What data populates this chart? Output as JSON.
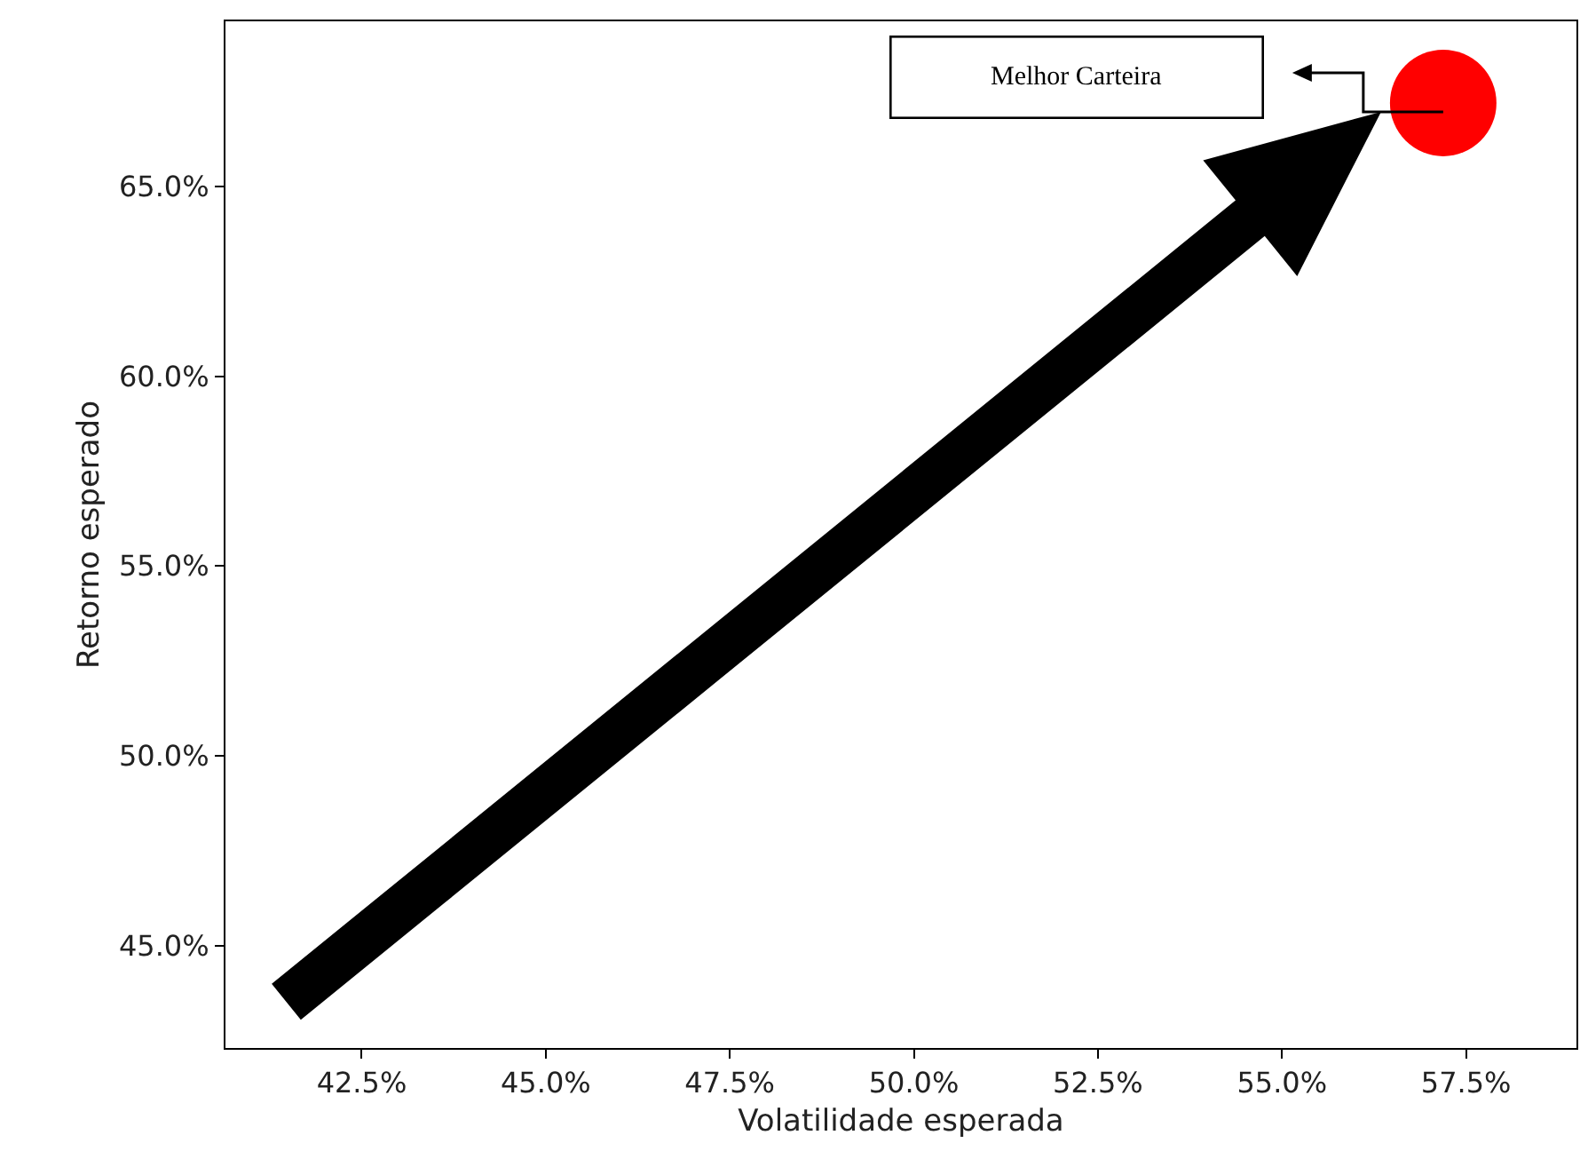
{
  "chart_data": {
    "type": "scatter",
    "xlabel": "Volatilidade esperada",
    "ylabel": "Retorno esperado",
    "x": [
      57.19
    ],
    "series": [
      {
        "color": "#ff0000",
        "values": [
          67.2
        ]
      }
    ],
    "marker": "circle",
    "grid": false,
    "xlim": [
      40.65,
      59.0
    ],
    "ylim": [
      42.3,
      69.35
    ],
    "xticks": [
      {
        "value": 42.5,
        "label": "42.5%"
      },
      {
        "value": 45.0,
        "label": "45.0%"
      },
      {
        "value": 47.5,
        "label": "47.5%"
      },
      {
        "value": 50.0,
        "label": "50.0%"
      },
      {
        "value": 52.5,
        "label": "52.5%"
      },
      {
        "value": 55.0,
        "label": "55.0%"
      },
      {
        "value": 57.5,
        "label": "57.5%"
      }
    ],
    "yticks": [
      {
        "value": 45.0,
        "label": "45.0%"
      },
      {
        "value": 50.0,
        "label": "50.0%"
      },
      {
        "value": 55.0,
        "label": "55.0%"
      },
      {
        "value": 60.0,
        "label": "60.0%"
      },
      {
        "value": 65.0,
        "label": "65.0%"
      }
    ],
    "annotations": [
      "Melhor Carteira"
    ]
  }
}
